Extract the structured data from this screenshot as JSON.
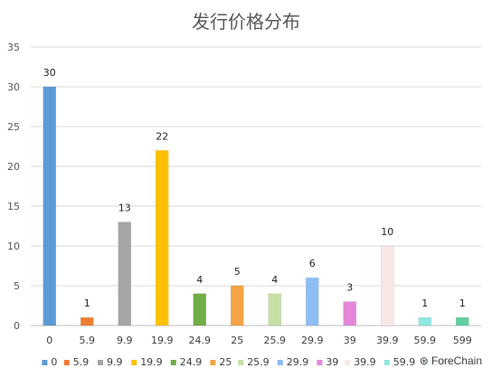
{
  "chart_data": {
    "type": "bar",
    "title": "发行价格分布",
    "categories": [
      "0",
      "5.9",
      "9.9",
      "19.9",
      "24.9",
      "25",
      "25.9",
      "29.9",
      "39",
      "39.9",
      "59.9",
      "599"
    ],
    "values": [
      30,
      1,
      13,
      22,
      4,
      5,
      4,
      6,
      3,
      10,
      1,
      1
    ],
    "colors": [
      "#5b9bd5",
      "#ed7d31",
      "#a5a5a5",
      "#ffc000",
      "#70ad47",
      "#f4a347",
      "#c5e0a5",
      "#8fbdf5",
      "#e387d8",
      "#f7e6e6",
      "#8ee8e0",
      "#5fcf9f"
    ],
    "ylim": [
      0,
      35
    ],
    "yticks": [
      0,
      5,
      10,
      15,
      20,
      25,
      30,
      35
    ],
    "grid": true,
    "legend": "bottom",
    "xlabel": "",
    "ylabel": ""
  },
  "watermark": "ForeChain",
  "watermark_icon": "wechat-icon"
}
